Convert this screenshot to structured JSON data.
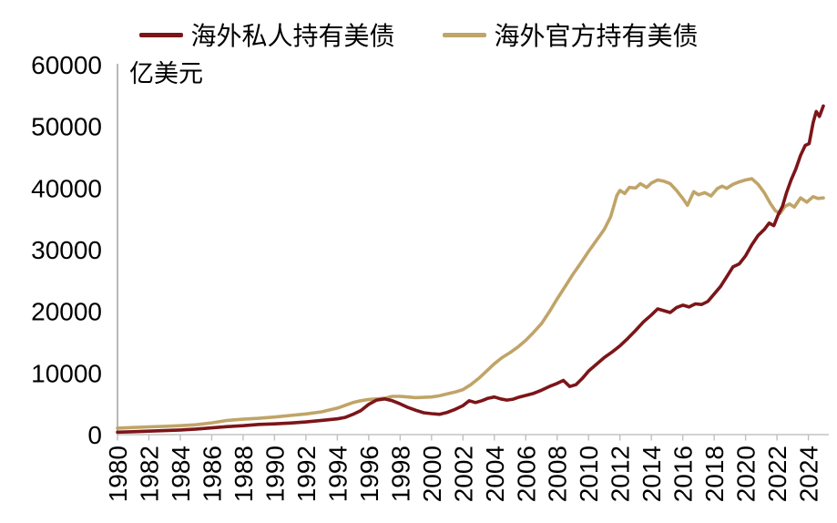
{
  "chart_data": {
    "type": "line",
    "unit_label": "亿美元",
    "grid": false,
    "legend_position": "top-center",
    "x_axis": {
      "range": [
        1980,
        2025.3
      ],
      "ticks": [
        1980,
        1982,
        1984,
        1986,
        1988,
        1990,
        1992,
        1994,
        1996,
        1998,
        2000,
        2002,
        2004,
        2006,
        2008,
        2010,
        2012,
        2014,
        2016,
        2018,
        2020,
        2022,
        2024
      ]
    },
    "y_axis": {
      "range": [
        0,
        60000
      ],
      "ticks": [
        0,
        10000,
        20000,
        30000,
        40000,
        50000,
        60000
      ]
    },
    "axis_color": "#bfbfbf",
    "series": [
      {
        "name": "海外私人持有美债",
        "color": "#7c1519",
        "points": [
          [
            1980,
            400
          ],
          [
            1981,
            480
          ],
          [
            1982,
            560
          ],
          [
            1983,
            650
          ],
          [
            1984,
            760
          ],
          [
            1985,
            900
          ],
          [
            1986,
            1100
          ],
          [
            1987,
            1300
          ],
          [
            1988,
            1450
          ],
          [
            1989,
            1650
          ],
          [
            1990,
            1750
          ],
          [
            1991,
            1880
          ],
          [
            1992,
            2050
          ],
          [
            1993,
            2300
          ],
          [
            1994,
            2550
          ],
          [
            1994.5,
            2800
          ],
          [
            1995,
            3300
          ],
          [
            1995.5,
            3900
          ],
          [
            1996,
            4900
          ],
          [
            1996.5,
            5600
          ],
          [
            1997,
            5800
          ],
          [
            1997.5,
            5500
          ],
          [
            1998,
            5000
          ],
          [
            1998.5,
            4400
          ],
          [
            1999,
            3950
          ],
          [
            1999.5,
            3550
          ],
          [
            2000,
            3400
          ],
          [
            2000.5,
            3300
          ],
          [
            2001,
            3600
          ],
          [
            2001.5,
            4100
          ],
          [
            2002,
            4700
          ],
          [
            2002.4,
            5500
          ],
          [
            2002.8,
            5200
          ],
          [
            2003.2,
            5500
          ],
          [
            2003.6,
            5900
          ],
          [
            2004,
            6100
          ],
          [
            2004.4,
            5800
          ],
          [
            2004.8,
            5600
          ],
          [
            2005.2,
            5750
          ],
          [
            2005.6,
            6100
          ],
          [
            2006,
            6350
          ],
          [
            2006.5,
            6700
          ],
          [
            2007,
            7200
          ],
          [
            2007.5,
            7800
          ],
          [
            2008,
            8300
          ],
          [
            2008.4,
            8800
          ],
          [
            2008.8,
            7800
          ],
          [
            2009.2,
            8100
          ],
          [
            2009.6,
            9100
          ],
          [
            2010,
            10300
          ],
          [
            2010.5,
            11400
          ],
          [
            2011,
            12500
          ],
          [
            2011.5,
            13400
          ],
          [
            2012,
            14400
          ],
          [
            2012.5,
            15600
          ],
          [
            2013,
            16900
          ],
          [
            2013.5,
            18300
          ],
          [
            2014,
            19400
          ],
          [
            2014.4,
            20400
          ],
          [
            2014.8,
            20100
          ],
          [
            2015.2,
            19800
          ],
          [
            2015.6,
            20600
          ],
          [
            2016,
            21000
          ],
          [
            2016.4,
            20700
          ],
          [
            2016.8,
            21200
          ],
          [
            2017.2,
            21100
          ],
          [
            2017.6,
            21600
          ],
          [
            2018,
            22800
          ],
          [
            2018.4,
            24000
          ],
          [
            2018.8,
            25600
          ],
          [
            2019.2,
            27200
          ],
          [
            2019.6,
            27700
          ],
          [
            2020,
            29000
          ],
          [
            2020.4,
            30800
          ],
          [
            2020.8,
            32300
          ],
          [
            2021.2,
            33300
          ],
          [
            2021.5,
            34300
          ],
          [
            2021.8,
            33900
          ],
          [
            2022.1,
            35800
          ],
          [
            2022.35,
            37000
          ],
          [
            2022.6,
            39200
          ],
          [
            2022.9,
            41300
          ],
          [
            2023.2,
            43100
          ],
          [
            2023.5,
            45300
          ],
          [
            2023.8,
            46900
          ],
          [
            2024.05,
            47200
          ],
          [
            2024.3,
            50600
          ],
          [
            2024.5,
            52400
          ],
          [
            2024.7,
            51600
          ],
          [
            2024.95,
            53300
          ]
        ]
      },
      {
        "name": "海外官方持有美债",
        "color": "#c0a468",
        "points": [
          [
            1980,
            1050
          ],
          [
            1981,
            1150
          ],
          [
            1982,
            1250
          ],
          [
            1983,
            1350
          ],
          [
            1984,
            1450
          ],
          [
            1985,
            1600
          ],
          [
            1986,
            1900
          ],
          [
            1987,
            2300
          ],
          [
            1988,
            2500
          ],
          [
            1989,
            2650
          ],
          [
            1990,
            2850
          ],
          [
            1991,
            3100
          ],
          [
            1992,
            3350
          ],
          [
            1993,
            3700
          ],
          [
            1994,
            4300
          ],
          [
            1995,
            5200
          ],
          [
            1995.5,
            5500
          ],
          [
            1996,
            5700
          ],
          [
            1996.5,
            5800
          ],
          [
            1997,
            5900
          ],
          [
            1997.5,
            6200
          ],
          [
            1998,
            6200
          ],
          [
            1998.5,
            6100
          ],
          [
            1999,
            6000
          ],
          [
            1999.5,
            6050
          ],
          [
            2000,
            6100
          ],
          [
            2000.5,
            6300
          ],
          [
            2001,
            6600
          ],
          [
            2001.5,
            6900
          ],
          [
            2002,
            7300
          ],
          [
            2002.5,
            8100
          ],
          [
            2003,
            9100
          ],
          [
            2003.5,
            10300
          ],
          [
            2004,
            11500
          ],
          [
            2004.5,
            12500
          ],
          [
            2005,
            13300
          ],
          [
            2005.5,
            14200
          ],
          [
            2006,
            15300
          ],
          [
            2006.5,
            16600
          ],
          [
            2007,
            18000
          ],
          [
            2007.5,
            19900
          ],
          [
            2008,
            22000
          ],
          [
            2008.5,
            24000
          ],
          [
            2009,
            26000
          ],
          [
            2009.5,
            27800
          ],
          [
            2010,
            29700
          ],
          [
            2010.5,
            31500
          ],
          [
            2011,
            33300
          ],
          [
            2011.4,
            35300
          ],
          [
            2011.8,
            38800
          ],
          [
            2012,
            39600
          ],
          [
            2012.3,
            39100
          ],
          [
            2012.6,
            40100
          ],
          [
            2013,
            40000
          ],
          [
            2013.3,
            40700
          ],
          [
            2013.7,
            40100
          ],
          [
            2014,
            40800
          ],
          [
            2014.4,
            41300
          ],
          [
            2014.8,
            41100
          ],
          [
            2015.2,
            40700
          ],
          [
            2015.6,
            39600
          ],
          [
            2016,
            38300
          ],
          [
            2016.3,
            37200
          ],
          [
            2016.7,
            39400
          ],
          [
            2017,
            38900
          ],
          [
            2017.4,
            39250
          ],
          [
            2017.8,
            38700
          ],
          [
            2018.2,
            39900
          ],
          [
            2018.5,
            40300
          ],
          [
            2018.8,
            39950
          ],
          [
            2019.2,
            40600
          ],
          [
            2019.6,
            41000
          ],
          [
            2020,
            41300
          ],
          [
            2020.4,
            41500
          ],
          [
            2020.8,
            40600
          ],
          [
            2021.2,
            39200
          ],
          [
            2021.6,
            37400
          ],
          [
            2021.9,
            36300
          ],
          [
            2022.2,
            35900
          ],
          [
            2022.5,
            37000
          ],
          [
            2022.8,
            37400
          ],
          [
            2023.1,
            36900
          ],
          [
            2023.5,
            38400
          ],
          [
            2023.9,
            37700
          ],
          [
            2024.3,
            38600
          ],
          [
            2024.6,
            38300
          ],
          [
            2024.95,
            38400
          ]
        ]
      }
    ]
  }
}
